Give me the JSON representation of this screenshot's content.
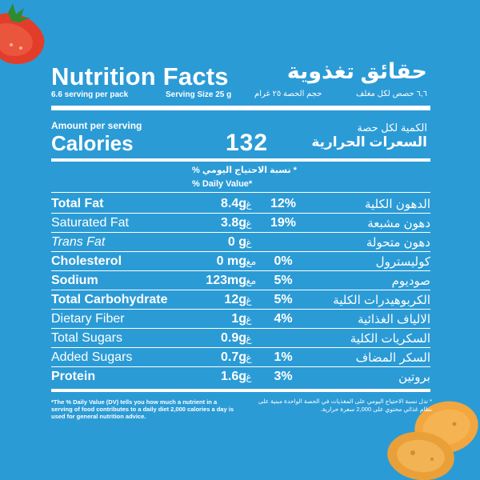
{
  "header": {
    "title_en": "Nutrition Facts",
    "title_ar": "حقائق تغذوية",
    "servings_en": "6.6 serving per pack",
    "serving_size_en": "Serving Size 25 g",
    "serving_size_ar": "حجم الحصة ٢٥ غرام",
    "servings_ar": "٦,٦ حصص لكل مغلف"
  },
  "calories": {
    "amount_label": "Amount per serving",
    "label": "Calories",
    "value": "132",
    "label_ar_line1": "الكمية لكل حصة",
    "label_ar_line2": "السعرات الحرارية"
  },
  "daily_value": {
    "heading_ar": "* نسبة الاحتياج اليومي %",
    "heading_en": "% Daily Value*"
  },
  "nutrients": [
    {
      "name": "Total Fat",
      "amount": "8.4g",
      "unit_ar": "غ/",
      "pct": "12%",
      "name_ar": "الدهون الكلية"
    },
    {
      "name": "Saturated Fat",
      "amount": "3.8g",
      "unit_ar": "غ/",
      "pct": "19%",
      "name_ar": "دهون مشبعة"
    },
    {
      "name": "Trans Fat",
      "amount": "0 g",
      "unit_ar": "غ/",
      "pct": "",
      "name_ar": "دهون متحولة"
    },
    {
      "name": "Cholesterol",
      "amount": "0 mg",
      "unit_ar": "مغ/",
      "pct": "0%",
      "name_ar": "كوليسترول"
    },
    {
      "name": "Sodium",
      "amount": "123mg",
      "unit_ar": "مغ/",
      "pct": "5%",
      "name_ar": "صوديوم"
    },
    {
      "name": "Total Carbohydrate",
      "amount": "12g",
      "unit_ar": "غ/",
      "pct": "5%",
      "name_ar": "الكربوهيدرات الكلية"
    },
    {
      "name": "Dietary Fiber",
      "amount": "1g",
      "unit_ar": "غ/",
      "pct": "4%",
      "name_ar": "الالياف الغذائية"
    },
    {
      "name": "Total Sugars",
      "amount": "0.9g",
      "unit_ar": "غ/",
      "pct": "",
      "name_ar": "السكريات الكلية"
    },
    {
      "name": "Added Sugars",
      "amount": "0.7g",
      "unit_ar": "غ/",
      "pct": "1%",
      "name_ar": "السكر المضاف"
    },
    {
      "name": "Protein",
      "amount": "1.6g",
      "unit_ar": "غ/",
      "pct": "3%",
      "name_ar": "بروتين"
    }
  ],
  "footnote": {
    "en": "*The % Daily Value (DV) tells you how much a nutrient in a serving of food contributes to a daily diet 2,000 calories a day is used for general nutrition advice.",
    "ar": "* تدل نسبة الاحتياج اليومي على المغذيات في الحصة الواحدة مبنية على نظام غذائي محتوي على 2,000 سعرة حرارية."
  },
  "colors": {
    "background": "#2b9bd6",
    "text": "#ffffff",
    "tomato": "#e23d2b",
    "chip": "#f2a63f"
  },
  "decorations": [
    "tomato-slice",
    "potato-chips"
  ]
}
